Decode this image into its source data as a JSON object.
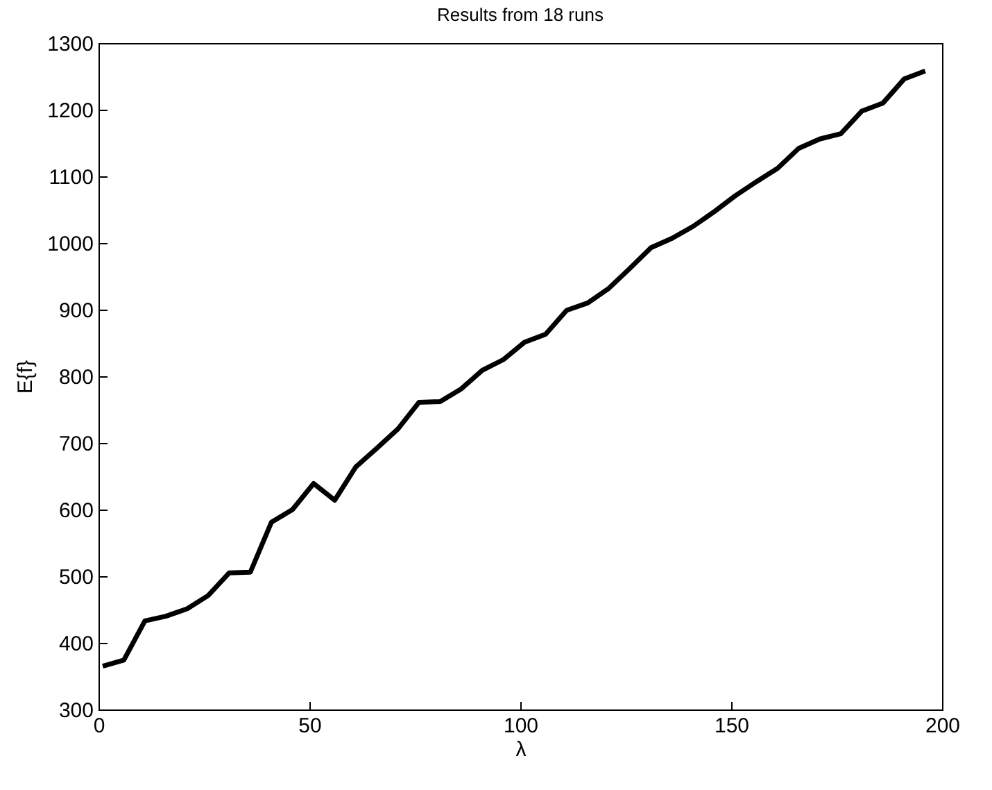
{
  "chart_data": {
    "type": "line",
    "title": "Results from 18 runs",
    "xlabel": "λ",
    "ylabel": "E{f}",
    "x": [
      1,
      6,
      11,
      16,
      21,
      26,
      31,
      36,
      41,
      46,
      51,
      56,
      61,
      66,
      71,
      76,
      81,
      86,
      91,
      96,
      101,
      106,
      111,
      116,
      121,
      126,
      131,
      136,
      141,
      146,
      151,
      156,
      161,
      166,
      171,
      176,
      181,
      186,
      191,
      196
    ],
    "series": [
      {
        "color": "#000000",
        "values": [
          365,
          374,
          433,
          440,
          451,
          471,
          505,
          506,
          581,
          600,
          639,
          614,
          664,
          692,
          721,
          761,
          762,
          781,
          809,
          825,
          851,
          863,
          899,
          910,
          932,
          962,
          993,
          1007,
          1025,
          1047,
          1071,
          1092,
          1112,
          1142,
          1156,
          1164,
          1198,
          1210,
          1246,
          1258
        ]
      }
    ],
    "xlim": [
      0,
      200
    ],
    "xticks": [
      0,
      50,
      100,
      150,
      200
    ],
    "ylim": [
      300,
      1300
    ],
    "yticks": [
      300,
      400,
      500,
      600,
      700,
      800,
      900,
      1000,
      1100,
      1200,
      1300
    ],
    "grid": false,
    "legend": false,
    "marker": "none",
    "line_style": "solid"
  }
}
